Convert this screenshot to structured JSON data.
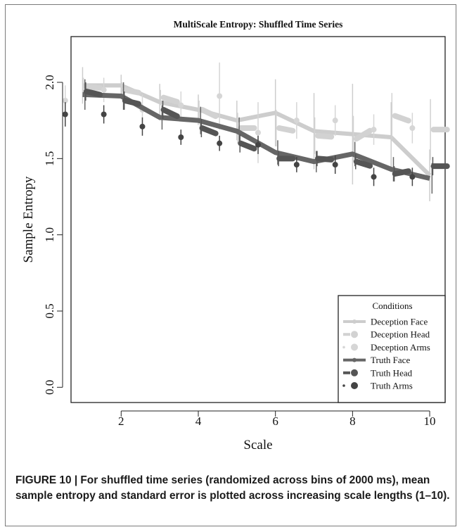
{
  "chart_data": {
    "type": "line",
    "title": "MultiScale Entropy: Shuffled Time Series",
    "xlabel": "Scale",
    "ylabel": "Sample Entropy",
    "xlim": [
      0.7,
      10.4
    ],
    "ylim": [
      -0.1,
      2.3
    ],
    "xticks": [
      2,
      4,
      6,
      8,
      10
    ],
    "xtick_labels": [
      "2",
      "4",
      "6",
      "8",
      "10"
    ],
    "yticks": [
      0.0,
      0.5,
      1.0,
      1.5,
      2.0
    ],
    "ytick_labels": [
      "0.0",
      "0.5",
      "1.0",
      "1.5",
      "2.0"
    ],
    "grid": false,
    "legend": {
      "title": "Conditions",
      "position": "bottom-right"
    },
    "x": [
      1,
      2,
      3,
      4,
      5,
      6,
      7,
      8,
      9,
      10
    ],
    "series": [
      {
        "name": "Deception Face",
        "style": "line",
        "color": "#cdcdcd",
        "values": [
          1.98,
          1.98,
          1.87,
          1.82,
          1.75,
          1.8,
          1.68,
          1.66,
          1.64,
          1.39
        ],
        "errors": [
          0.12,
          0.07,
          0.12,
          0.1,
          0.13,
          0.22,
          0.25,
          0.33,
          0.23,
          0.17
        ]
      },
      {
        "name": "Deception Head",
        "style": "dashes",
        "color": "#d2d2d2",
        "values": [
          1.97,
          1.95,
          1.9,
          1.82,
          1.7,
          1.7,
          1.65,
          1.63,
          1.78,
          1.69
        ],
        "errors": [
          0.06,
          0.05,
          0.05,
          0.06,
          0.1,
          0.12,
          0.12,
          0.15,
          0.15,
          0.2
        ]
      },
      {
        "name": "Deception Arms",
        "style": "points",
        "color": "#d6d6d6",
        "values": [
          1.88,
          1.95,
          1.82,
          1.85,
          1.91,
          1.67,
          1.75,
          1.75,
          1.69,
          1.7
        ],
        "errors": [
          0.1,
          0.08,
          0.1,
          0.09,
          0.22,
          0.2,
          0.12,
          0.1,
          0.1,
          0.1
        ]
      },
      {
        "name": "Truth Face",
        "style": "line",
        "color": "#666666",
        "values": [
          1.92,
          1.91,
          1.77,
          1.75,
          1.68,
          1.54,
          1.48,
          1.53,
          1.43,
          1.37
        ],
        "errors": [
          0.1,
          0.09,
          0.08,
          0.09,
          0.09,
          0.08,
          0.07,
          0.08,
          0.08,
          0.1
        ]
      },
      {
        "name": "Truth Head",
        "style": "dashes",
        "color": "#555555",
        "values": [
          1.94,
          1.88,
          1.82,
          1.7,
          1.6,
          1.5,
          1.5,
          1.48,
          1.4,
          1.45
        ],
        "errors": [
          0.06,
          0.06,
          0.06,
          0.06,
          0.06,
          0.05,
          0.05,
          0.05,
          0.05,
          0.06
        ]
      },
      {
        "name": "Truth Arms",
        "style": "points",
        "color": "#444444",
        "values": [
          1.79,
          1.79,
          1.71,
          1.64,
          1.6,
          1.59,
          1.46,
          1.46,
          1.38,
          1.38
        ],
        "errors": [
          0.08,
          0.06,
          0.06,
          0.05,
          0.05,
          0.06,
          0.05,
          0.06,
          0.06,
          0.06
        ]
      }
    ]
  },
  "caption": {
    "text": "FIGURE 10 | For shuffled time series (randomized across bins of 2000 ms), mean sample entropy and standard error is plotted across increasing scale lengths (1–10)."
  }
}
